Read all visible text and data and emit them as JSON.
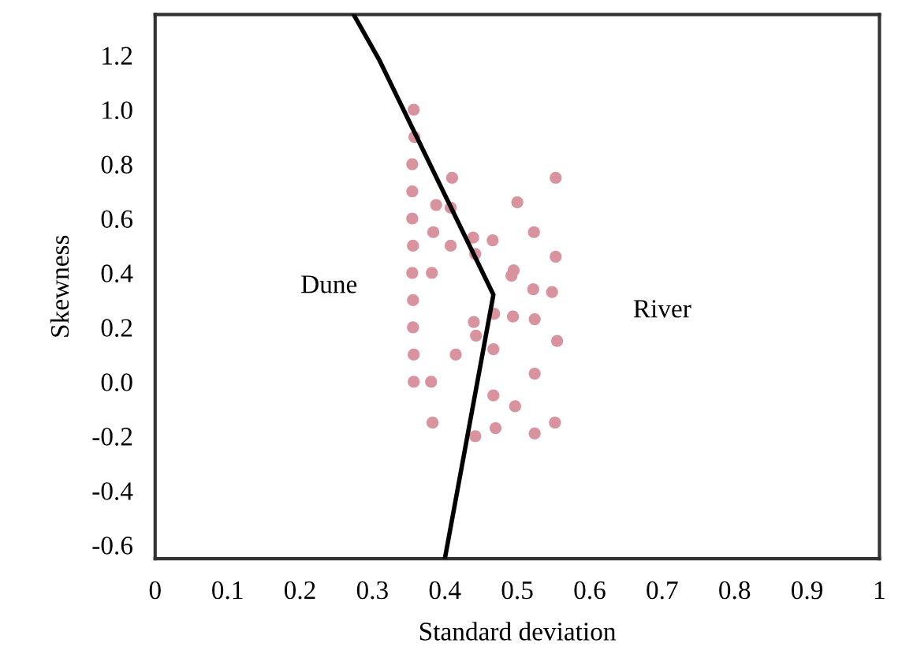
{
  "chart_data": {
    "type": "scatter",
    "xlabel": "Standard deviation",
    "ylabel": "Skewness",
    "xlim": [
      0,
      1
    ],
    "ylim": [
      -0.65,
      1.35
    ],
    "xticks": [
      0,
      0.1,
      0.2,
      0.3,
      0.4,
      0.5,
      0.6,
      0.7,
      0.8,
      0.9,
      1
    ],
    "yticks": [
      {
        "value": -0.6,
        "label": "-0.6"
      },
      {
        "value": -0.4,
        "label": "-0.4"
      },
      {
        "value": -0.2,
        "label": "-0.2"
      },
      {
        "value": 0,
        "label": "0.0"
      },
      {
        "value": 0.2,
        "label": "0.2"
      },
      {
        "value": 0.4,
        "label": "0.4"
      },
      {
        "value": 0.6,
        "label": "0.6"
      },
      {
        "value": 0.8,
        "label": "0.8"
      },
      {
        "value": 1.0,
        "label": "1.0"
      },
      {
        "value": 1.2,
        "label": "1.2"
      }
    ],
    "grid": false,
    "legend": false,
    "marker": "circle",
    "series": [
      {
        "color": "#d9939f",
        "x": [
          0.357,
          0.358,
          0.355,
          0.355,
          0.41,
          0.388,
          0.408,
          0.355,
          0.5,
          0.553,
          0.384,
          0.439,
          0.466,
          0.356,
          0.408,
          0.442,
          0.523,
          0.553,
          0.355,
          0.382,
          0.495,
          0.492,
          0.522,
          0.548,
          0.356,
          0.356,
          0.44,
          0.468,
          0.494,
          0.524,
          0.443,
          0.555,
          0.357,
          0.415,
          0.467,
          0.357,
          0.381,
          0.524,
          0.467,
          0.497,
          0.383,
          0.442,
          0.47,
          0.524,
          0.552
        ],
        "values": [
          1.0,
          0.9,
          0.8,
          0.7,
          0.75,
          0.65,
          0.64,
          0.6,
          0.66,
          0.75,
          0.55,
          0.53,
          0.52,
          0.5,
          0.5,
          0.47,
          0.55,
          0.46,
          0.4,
          0.4,
          0.41,
          0.39,
          0.34,
          0.33,
          0.3,
          0.2,
          0.22,
          0.25,
          0.24,
          0.23,
          0.17,
          0.15,
          0.1,
          0.1,
          0.12,
          0.0,
          0.0,
          0.03,
          -0.05,
          -0.09,
          -0.15,
          -0.2,
          -0.17,
          -0.19,
          -0.15
        ]
      },
      {
        "type": "line",
        "color": "#000000",
        "marker": "none",
        "line_style": "solid",
        "x": [
          0.274,
          0.31,
          0.467,
          0.4
        ],
        "values": [
          1.35,
          1.18,
          0.32,
          -0.65
        ]
      }
    ],
    "annotations": [
      "Dune",
      "River"
    ]
  }
}
